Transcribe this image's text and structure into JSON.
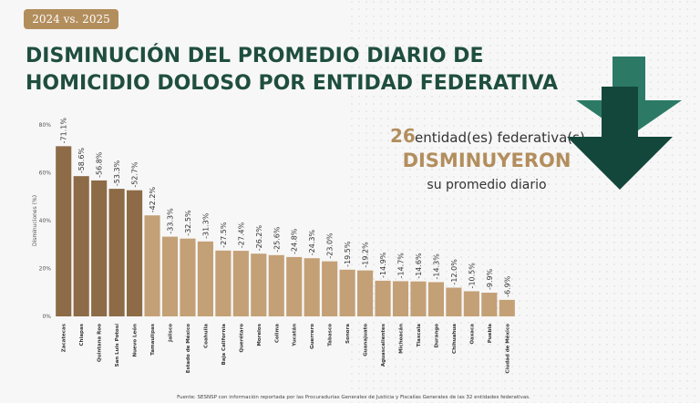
{
  "badge": "2024 vs. 2025",
  "title_lines": [
    "DISMINUCIÓN DEL PROMEDIO DIARIO DE",
    "HOMICIDIO DOLOSO POR ENTIDAD FEDERATIVA"
  ],
  "callout": {
    "count": 26,
    "line1": "entidad(es) federativa(s)",
    "line2": "DISMINUYERON",
    "line3": "su promedio diario"
  },
  "source": "Fuente: SESNSP con información reportada por las Procuradurías Generales de Justicia y Fiscalías Generales de las 32 entidades federativas.",
  "chart_data": {
    "type": "bar",
    "ylabel": "Disminuciones (%)",
    "categories": [
      "Zacatecas",
      "Chiapas",
      "Quintana Roo",
      "San Luis Potosí",
      "Nuevo León",
      "Tamaulipas",
      "Jalisco",
      "Estado de México",
      "Coahuila",
      "Baja California",
      "Querétaro",
      "Morelos",
      "Colima",
      "Yucatán",
      "Guerrero",
      "Tabasco",
      "Sonora",
      "Guanajuato",
      "Aguascalientes",
      "Michoacán",
      "Tlaxcala",
      "Durango",
      "Chihuahua",
      "Oaxaca",
      "Puebla",
      "Ciudad de México"
    ],
    "values": [
      71.1,
      58.6,
      56.8,
      53.3,
      52.7,
      42.2,
      33.3,
      32.5,
      31.3,
      27.5,
      27.4,
      26.2,
      25.6,
      24.8,
      24.3,
      23.0,
      19.5,
      19.2,
      14.9,
      14.7,
      14.6,
      14.3,
      12.0,
      10.5,
      9.9,
      6.9
    ],
    "value_labels": [
      "-71.1%",
      "-58.6%",
      "-56.8%",
      "-53.3%",
      "-52.7%",
      "-42.2%",
      "-33.3%",
      "-32.5%",
      "-31.3%",
      "-27.5%",
      "-27.4%",
      "-26.2%",
      "-25.6%",
      "-24.8%",
      "-24.3%",
      "-23.0%",
      "-19.5%",
      "-19.2%",
      "-14.9%",
      "-14.7%",
      "-14.6%",
      "-14.3%",
      "-12.0%",
      "-10.5%",
      "-9.9%",
      "-6.9%"
    ],
    "colors": [
      "#8d6b46",
      "#8d6b46",
      "#8d6b46",
      "#8d6b46",
      "#8d6b46",
      "#c4a077",
      "#c4a077",
      "#c4a077",
      "#c4a077",
      "#c4a077",
      "#c4a077",
      "#c4a077",
      "#c4a077",
      "#c4a077",
      "#c4a077",
      "#c4a077",
      "#c4a077",
      "#c4a077",
      "#c4a077",
      "#c4a077",
      "#c4a077",
      "#c4a077",
      "#c4a077",
      "#c4a077",
      "#c4a077",
      "#c4a077"
    ],
    "ylim": [
      0,
      80
    ],
    "yticks": [
      {
        "value": 0,
        "label": "0%"
      },
      {
        "value": 20,
        "label": "20%"
      },
      {
        "value": 40,
        "label": "40%"
      },
      {
        "value": 60,
        "label": "60%"
      },
      {
        "value": 80,
        "label": "80%"
      }
    ],
    "grid": false
  }
}
